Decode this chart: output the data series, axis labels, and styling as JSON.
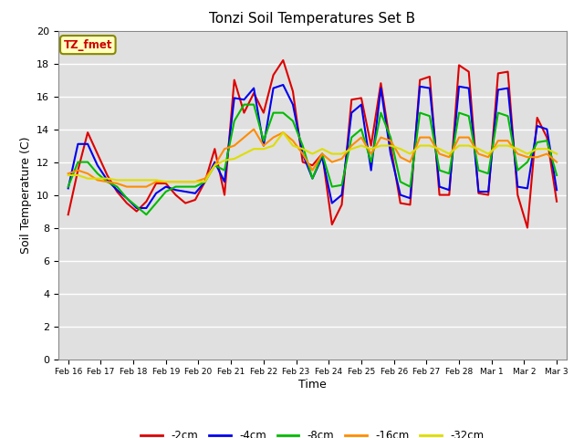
{
  "title": "Tonzi Soil Temperatures Set B",
  "xlabel": "Time",
  "ylabel": "Soil Temperature (C)",
  "label_text": "TZ_fmet",
  "ylim": [
    0,
    20
  ],
  "yticks": [
    0,
    2,
    4,
    6,
    8,
    10,
    12,
    14,
    16,
    18,
    20
  ],
  "xtick_labels": [
    "Feb 16",
    "Feb 17",
    "Feb 18",
    "Feb 19",
    "Feb 20",
    "Feb 21",
    "Feb 22",
    "Feb 23",
    "Feb 24",
    "Feb 25",
    "Feb 26",
    "Feb 27",
    "Feb 28",
    "Mar 1",
    "Mar 2",
    "Mar 3"
  ],
  "bg_color": "#e0e0e0",
  "fig_bg": "#ffffff",
  "series": {
    "-2cm": {
      "color": "#dd0000",
      "data": [
        8.8,
        11.5,
        13.8,
        12.5,
        11.2,
        10.2,
        9.5,
        9.0,
        9.6,
        10.7,
        10.7,
        10.0,
        9.5,
        9.7,
        10.8,
        12.8,
        10.0,
        17.0,
        15.0,
        16.2,
        15.0,
        17.3,
        18.2,
        16.3,
        12.0,
        11.8,
        12.5,
        8.2,
        9.4,
        15.8,
        15.9,
        13.0,
        16.8,
        13.0,
        9.5,
        9.4,
        17.0,
        17.2,
        10.0,
        10.0,
        17.9,
        17.5,
        10.1,
        10.0,
        17.4,
        17.5,
        10.0,
        8.0,
        14.7,
        13.5,
        9.6
      ]
    },
    "-4cm": {
      "color": "#0000ee",
      "data": [
        10.4,
        13.1,
        13.1,
        11.8,
        10.9,
        10.3,
        9.8,
        9.2,
        9.2,
        10.1,
        10.5,
        10.3,
        10.2,
        10.1,
        10.8,
        12.0,
        10.8,
        15.9,
        15.8,
        16.5,
        13.0,
        16.5,
        16.7,
        15.5,
        12.5,
        11.0,
        12.3,
        9.5,
        10.0,
        15.0,
        15.5,
        11.5,
        16.5,
        12.5,
        10.0,
        9.8,
        16.6,
        16.5,
        10.5,
        10.3,
        16.6,
        16.5,
        10.2,
        10.2,
        16.4,
        16.5,
        10.5,
        10.4,
        14.2,
        14.0,
        10.3
      ]
    },
    "-8cm": {
      "color": "#00bb00",
      "data": [
        10.5,
        12.0,
        12.0,
        11.3,
        10.8,
        10.5,
        9.8,
        9.3,
        8.8,
        9.5,
        10.2,
        10.5,
        10.5,
        10.5,
        10.8,
        11.8,
        11.5,
        14.5,
        15.5,
        15.5,
        13.3,
        15.0,
        15.0,
        14.5,
        13.0,
        11.0,
        12.5,
        10.5,
        10.6,
        13.5,
        14.0,
        12.0,
        15.0,
        13.5,
        10.8,
        10.5,
        15.0,
        14.8,
        11.5,
        11.3,
        15.0,
        14.8,
        11.5,
        11.3,
        15.0,
        14.8,
        11.5,
        12.0,
        13.2,
        13.3,
        11.2
      ]
    },
    "-16cm": {
      "color": "#ff8c00",
      "data": [
        11.3,
        11.5,
        11.3,
        10.9,
        10.8,
        10.7,
        10.5,
        10.5,
        10.5,
        10.8,
        10.8,
        10.8,
        10.8,
        10.8,
        11.0,
        11.8,
        12.8,
        13.0,
        13.5,
        14.0,
        13.0,
        13.5,
        13.8,
        13.3,
        12.5,
        11.5,
        12.5,
        12.0,
        12.2,
        13.0,
        13.5,
        12.5,
        13.5,
        13.3,
        12.3,
        12.0,
        13.5,
        13.5,
        12.5,
        12.3,
        13.5,
        13.5,
        12.5,
        12.3,
        13.3,
        13.3,
        12.5,
        12.3,
        12.3,
        12.5,
        12.0
      ]
    },
    "-32cm": {
      "color": "#dddd00",
      "data": [
        11.2,
        11.2,
        11.0,
        11.0,
        11.0,
        10.9,
        10.9,
        10.9,
        10.9,
        10.9,
        10.8,
        10.8,
        10.8,
        10.8,
        10.8,
        11.8,
        12.1,
        12.2,
        12.5,
        12.8,
        12.8,
        13.0,
        13.8,
        13.0,
        12.8,
        12.5,
        12.8,
        12.5,
        12.5,
        12.8,
        13.0,
        12.8,
        13.0,
        13.0,
        12.8,
        12.5,
        13.0,
        13.0,
        12.8,
        12.5,
        13.0,
        13.0,
        12.8,
        12.5,
        13.0,
        13.0,
        12.8,
        12.5,
        12.8,
        12.8,
        12.5
      ]
    }
  },
  "series_order": [
    "-2cm",
    "-4cm",
    "-8cm",
    "-16cm",
    "-32cm"
  ],
  "legend_colors": [
    "#dd0000",
    "#0000ee",
    "#00bb00",
    "#ff8c00",
    "#dddd00"
  ]
}
